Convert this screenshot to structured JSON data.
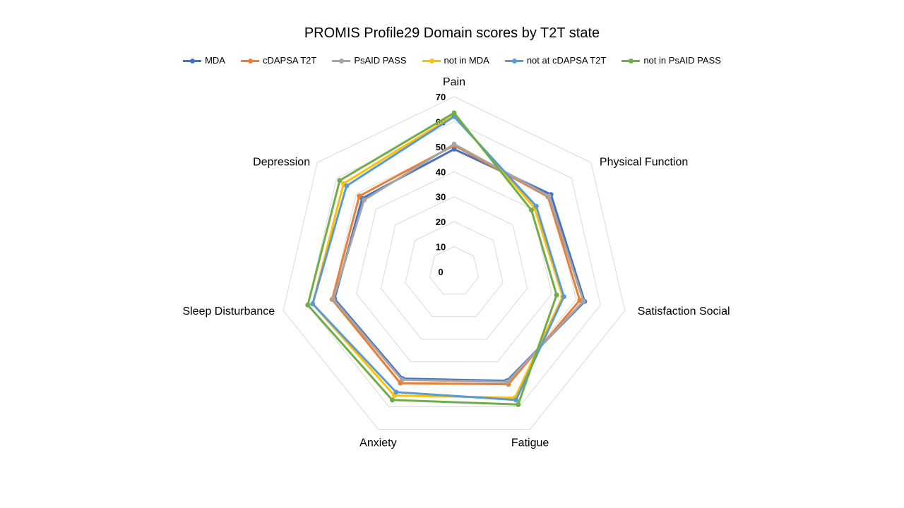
{
  "title": "PROMIS Profile29 Domain scores by T2T state",
  "chart_data": {
    "type": "radar",
    "title": "PROMIS Profile29 Domain scores by T2T state",
    "categories": [
      "Pain",
      "Physical Function",
      "Satisfaction Social",
      "Fatigue",
      "Anxiety",
      "Sleep Disturbance",
      "Depression"
    ],
    "rlim": [
      0,
      70
    ],
    "ticks": [
      "0",
      "10",
      "20",
      "30",
      "40",
      "50",
      "60",
      "70"
    ],
    "tick_values": [
      0,
      10,
      20,
      30,
      40,
      50,
      60,
      70
    ],
    "grid": true,
    "legend_position": "top",
    "series": [
      {
        "name": "MDA",
        "color": "#4472C4",
        "values": [
          49,
          49.5,
          53.5,
          48.5,
          47.5,
          49,
          47
        ]
      },
      {
        "name": "cDAPSA T2T",
        "color": "#ED7D31",
        "values": [
          50.5,
          48,
          51.5,
          50,
          49.5,
          50,
          48.5
        ]
      },
      {
        "name": "PsAID PASS",
        "color": "#A5A5A5",
        "values": [
          51,
          48.5,
          53,
          49,
          48,
          49.5,
          46
        ]
      },
      {
        "name": "not in MDA",
        "color": "#FFC000",
        "values": [
          62.5,
          41,
          44.5,
          56,
          55,
          58,
          56.5
        ]
      },
      {
        "name": "not at cDAPSA T2T",
        "color": "#5B9BD5",
        "values": [
          62,
          42,
          45,
          57,
          53.5,
          58,
          55
        ]
      },
      {
        "name": "not in PsAID PASS",
        "color": "#70AD47",
        "values": [
          63.5,
          39.5,
          42,
          59,
          57,
          60,
          58.5
        ]
      }
    ]
  }
}
